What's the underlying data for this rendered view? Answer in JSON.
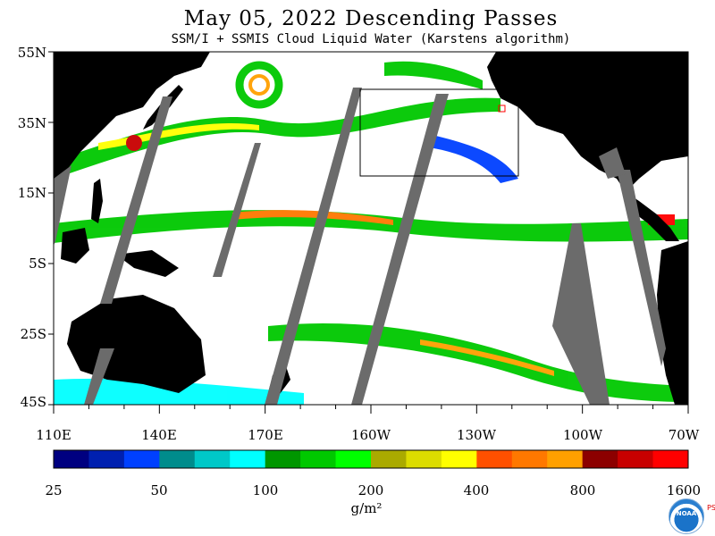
{
  "header": {
    "title": "May 05, 2022  Descending Passes",
    "subtitle": "SSM/I + SSMIS Cloud Liquid Water (Karstens algorithm)"
  },
  "map": {
    "lat_labels": [
      "55N",
      "35N",
      "15N",
      "5S",
      "25S",
      "45S"
    ],
    "lon_labels": [
      "110E",
      "140E",
      "170E",
      "160W",
      "130W",
      "100W",
      "70W"
    ],
    "colors": {
      "land": "#000000",
      "no_data_swath": "#6b6b6b",
      "clear": "#ffffff",
      "box_outline": "#000000",
      "marker": "#ff0000"
    }
  },
  "colorbar": {
    "tick_labels": [
      "25",
      "50",
      "100",
      "200",
      "400",
      "800",
      "1600"
    ],
    "unit": "g/m²",
    "colors": [
      "#000080",
      "#0020b0",
      "#0040ff",
      "#008c8c",
      "#00c8c8",
      "#00ffff",
      "#009600",
      "#00c800",
      "#00ff00",
      "#aaaa00",
      "#dcdc00",
      "#ffff00",
      "#ff5000",
      "#ff7800",
      "#ffa000",
      "#8c0000",
      "#c80000",
      "#ff0000"
    ]
  },
  "logo": {
    "name": "noaa-logo",
    "text": "NOAA",
    "side_text": "PSL"
  }
}
